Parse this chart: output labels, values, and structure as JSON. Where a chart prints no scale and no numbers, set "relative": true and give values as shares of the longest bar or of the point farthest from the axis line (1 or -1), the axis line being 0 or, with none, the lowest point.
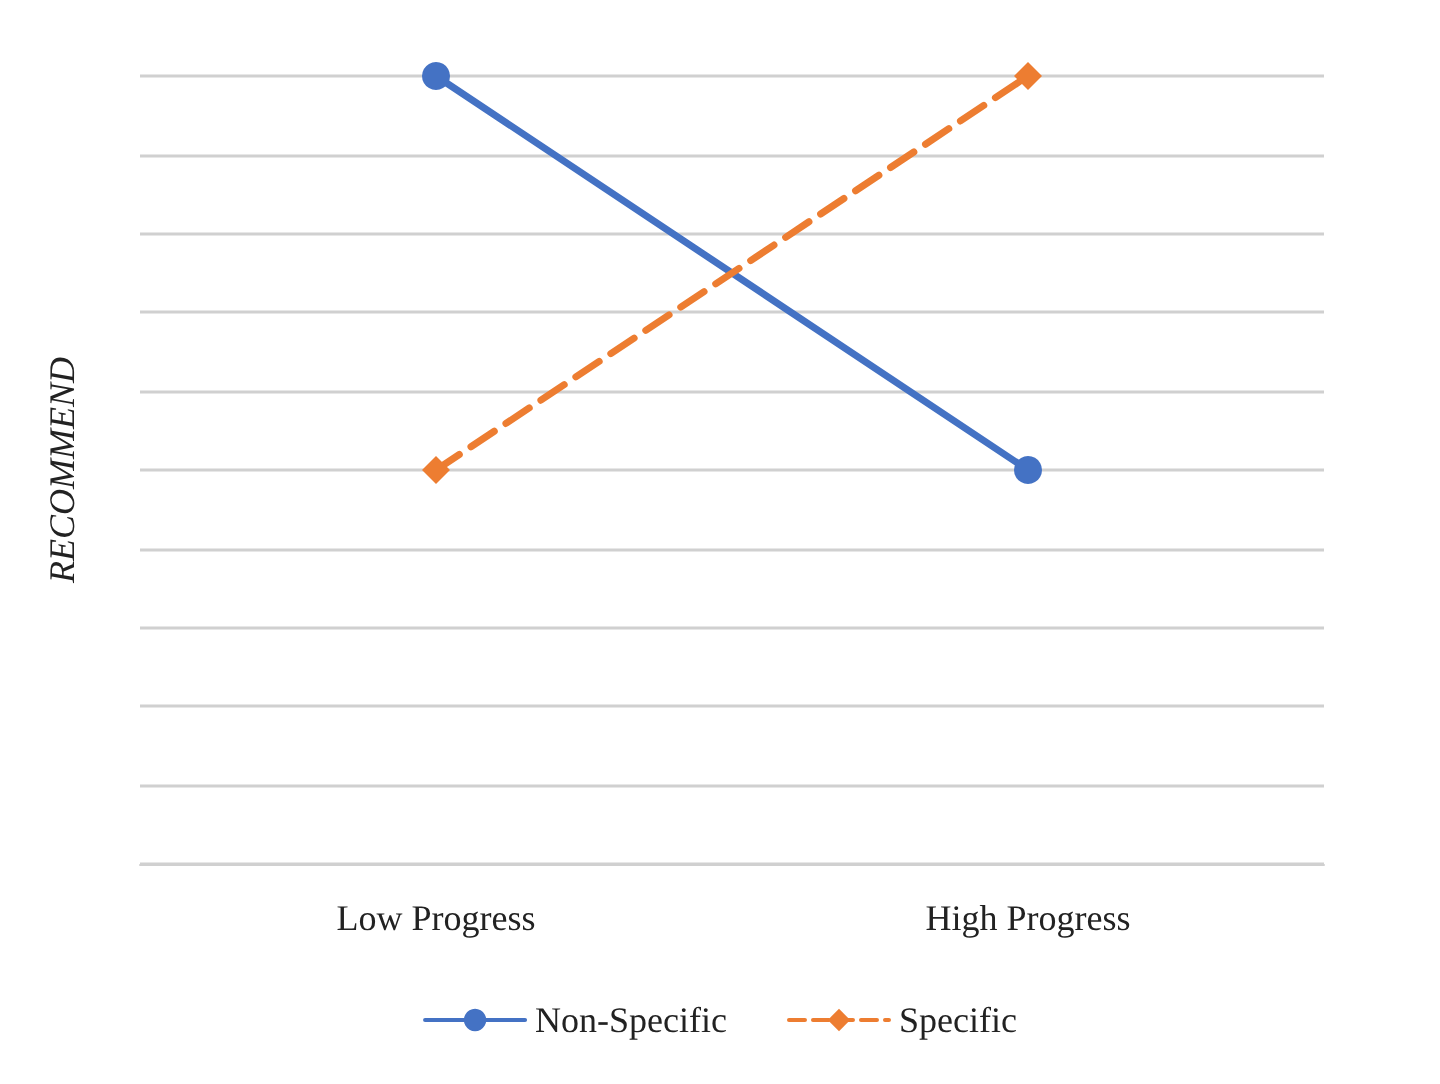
{
  "chart_data": {
    "type": "line",
    "ylabel": "RECOMMEND",
    "categories": [
      "Low Progress",
      "High Progress"
    ],
    "relative": true,
    "grid": "y",
    "legend": "bottom",
    "series": [
      {
        "name": "Non-Specific",
        "color": "#4472c4",
        "values": [
          1,
          0.5
        ],
        "marker": "circle",
        "line_style": "solid"
      },
      {
        "name": "Specific",
        "color": "#ed7d31",
        "values": [
          0.5,
          1
        ],
        "marker": "diamond",
        "line_style": "dashed"
      }
    ]
  }
}
